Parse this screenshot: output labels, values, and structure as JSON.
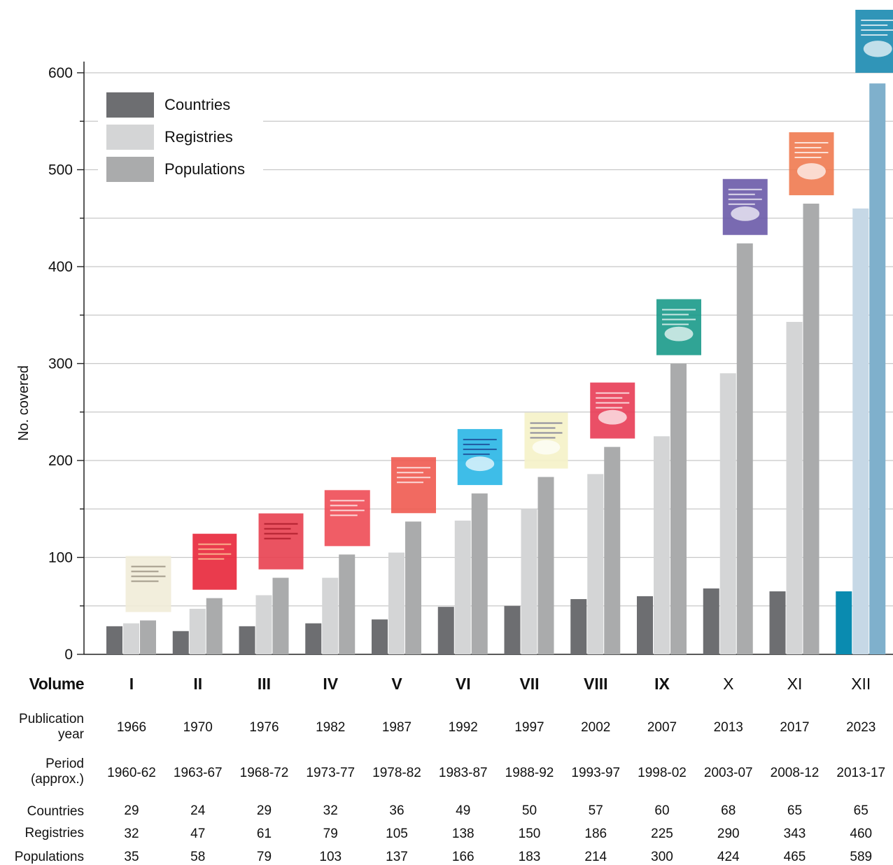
{
  "chart_data": {
    "type": "bar",
    "ylabel": "No. covered",
    "ylim": [
      0,
      600
    ],
    "yticks": [
      0,
      100,
      200,
      300,
      400,
      500,
      600
    ],
    "grid": true,
    "legend": "top-left",
    "categories": [
      "I",
      "II",
      "III",
      "IV",
      "V",
      "VI",
      "VII",
      "VIII",
      "IX",
      "X",
      "XI",
      "XII"
    ],
    "series": [
      {
        "name": "Countries",
        "color": "#6d6e71",
        "values": [
          29,
          24,
          29,
          32,
          36,
          49,
          50,
          57,
          60,
          68,
          65,
          65
        ]
      },
      {
        "name": "Registries",
        "color": "#d4d5d6",
        "values": [
          32,
          47,
          61,
          79,
          105,
          138,
          150,
          186,
          225,
          290,
          343,
          460
        ]
      },
      {
        "name": "Populations",
        "color": "#aaabac",
        "values": [
          35,
          58,
          79,
          103,
          137,
          166,
          183,
          214,
          300,
          424,
          465,
          589
        ]
      }
    ],
    "highlight": {
      "category": "XII",
      "colors": [
        "#0a8bb0",
        "#c6d8e6",
        "#7fb0cc"
      ]
    }
  },
  "table": {
    "volume_label": "Volume",
    "publication_label_line1": "Publication",
    "publication_label_line2": "year",
    "period_label_line1": "Period",
    "period_label_line2": "(approx.)",
    "countries_label": "Countries",
    "registries_label": "Registries",
    "populations_label": "Populations",
    "publication_years": [
      "1966",
      "1970",
      "1976",
      "1982",
      "1987",
      "1992",
      "1997",
      "2002",
      "2007",
      "2013",
      "2017",
      "2023"
    ],
    "periods": [
      "1960-62",
      "1963-67",
      "1968-72",
      "1973-77",
      "1978-82",
      "1983-87",
      "1988-92",
      "1993-97",
      "1998-02",
      "2003-07",
      "2008-12",
      "2013-17"
    ]
  },
  "book_covers": [
    {
      "volume": "I",
      "color": "#f1ecd8",
      "text_color": "#8a8070"
    },
    {
      "volume": "II",
      "color": "#e8263a",
      "text_color": "#ffd7a0"
    },
    {
      "volume": "III",
      "color": "#e84050",
      "text_color": "#a01020"
    },
    {
      "volume": "IV",
      "color": "#ee4b55",
      "text_color": "#ffffff"
    },
    {
      "volume": "V",
      "color": "#ef5a50",
      "text_color": "#ffffff"
    },
    {
      "volume": "VI",
      "color": "#29b6e6",
      "text_color": "#1a3a8a"
    },
    {
      "volume": "VII",
      "color": "#f5f2c8",
      "text_color": "#6a6a8a"
    },
    {
      "volume": "VIII",
      "color": "#e83c55",
      "text_color": "#ffffff"
    },
    {
      "volume": "IX",
      "color": "#1a9a8a",
      "text_color": "#ffffff"
    },
    {
      "volume": "X",
      "color": "#6a5aa8",
      "text_color": "#ffffff"
    },
    {
      "volume": "XI",
      "color": "#f07a50",
      "text_color": "#ffffff"
    },
    {
      "volume": "XII",
      "color": "#1a8ab0",
      "text_color": "#ffffff"
    }
  ]
}
